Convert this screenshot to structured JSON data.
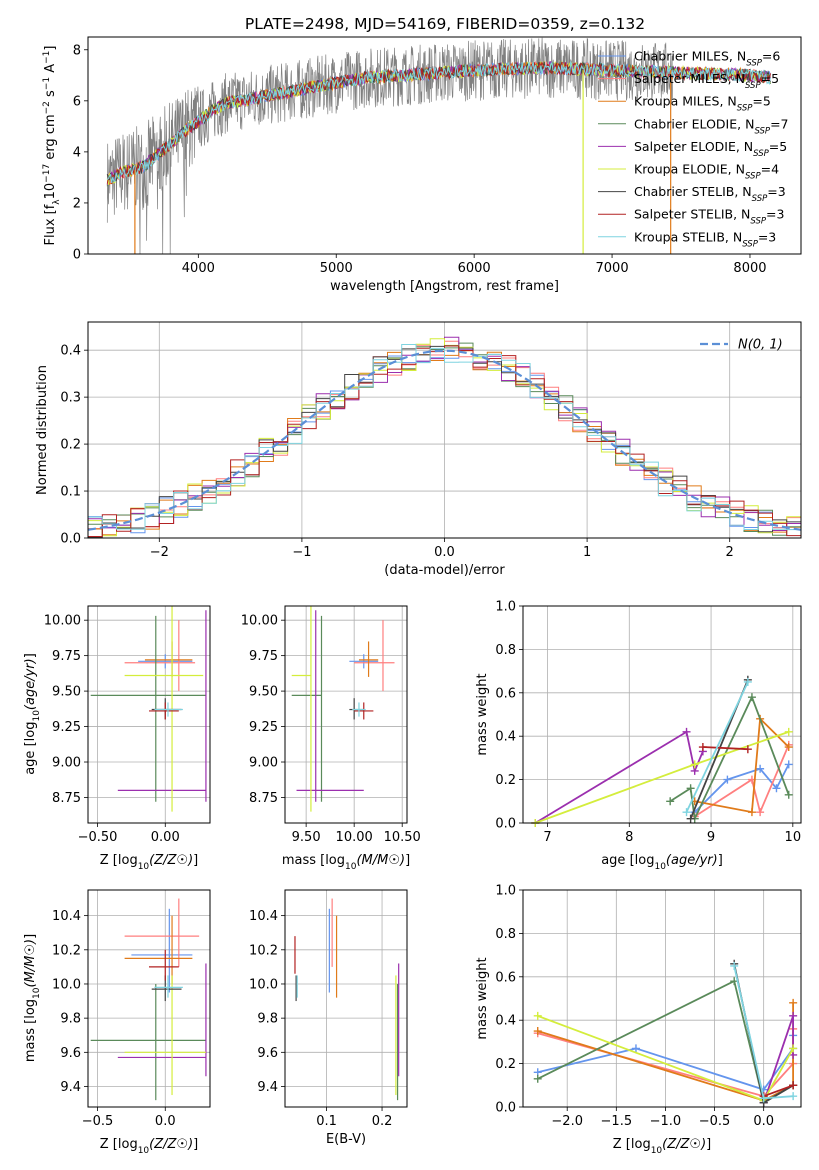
{
  "title": "PLATE=2498, MJD=54169, FIBERID=0359, z=0.132",
  "colors": {
    "chabrier_miles": "#6495ed",
    "salpeter_miles": "#ff7f7f",
    "kroupa_miles": "#e07b1a",
    "chabrier_elodie": "#5a8a5a",
    "salpeter_elodie": "#9b2fae",
    "kroupa_elodie": "#d4ed3c",
    "chabrier_stelib": "#444444",
    "salpeter_stelib": "#b22222",
    "kroupa_stelib": "#7fd4e0",
    "data": "#808080",
    "gaussian": "#5b8fd6"
  },
  "chart_data": [
    {
      "id": "spectrum",
      "type": "line",
      "xlabel": "wavelength [Angstrom, rest frame]",
      "ylabel": "Flux [f_λ10^−17 erg cm^−2 s^−1 A^−1]",
      "xlim": [
        3200,
        8370
      ],
      "ylim": [
        0,
        8.5
      ],
      "xticks": [
        4000,
        5000,
        6000,
        7000,
        8000
      ],
      "yticks": [
        0,
        2,
        4,
        6,
        8
      ],
      "grid": false,
      "legend_position": "right",
      "legend": [
        {
          "label": "Chabrier MILES, N",
          "sub": "SSP",
          "tail": "=6",
          "color": "chabrier_miles"
        },
        {
          "label": "Salpeter MILES, N",
          "sub": "SSP",
          "tail": "=5",
          "color": "salpeter_miles"
        },
        {
          "label": "Kroupa MILES, N",
          "sub": "SSP",
          "tail": "=5",
          "color": "kroupa_miles"
        },
        {
          "label": "Chabrier ELODIE, N",
          "sub": "SSP",
          "tail": "=7",
          "color": "chabrier_elodie"
        },
        {
          "label": "Salpeter ELODIE, N",
          "sub": "SSP",
          "tail": "=5",
          "color": "salpeter_elodie"
        },
        {
          "label": "Kroupa ELODIE, N",
          "sub": "SSP",
          "tail": "=4",
          "color": "kroupa_elodie"
        },
        {
          "label": "Chabrier STELIB, N",
          "sub": "SSP",
          "tail": "=3",
          "color": "chabrier_stelib"
        },
        {
          "label": "Salpeter STELIB, N",
          "sub": "SSP",
          "tail": "=3",
          "color": "salpeter_stelib"
        },
        {
          "label": "Kroupa STELIB, N",
          "sub": "SSP",
          "tail": "=3",
          "color": "kroupa_stelib"
        }
      ],
      "continuum": [
        [
          3340,
          2.9
        ],
        [
          3450,
          3.2
        ],
        [
          3600,
          3.4
        ],
        [
          3700,
          3.9
        ],
        [
          3800,
          4.3
        ],
        [
          3900,
          4.8
        ],
        [
          4000,
          5.2
        ],
        [
          4100,
          5.6
        ],
        [
          4200,
          5.9
        ],
        [
          4400,
          6.1
        ],
        [
          4600,
          6.3
        ],
        [
          4800,
          6.5
        ],
        [
          5000,
          6.7
        ],
        [
          5200,
          6.9
        ],
        [
          5500,
          7.0
        ],
        [
          6000,
          7.2
        ],
        [
          6500,
          7.3
        ],
        [
          7000,
          7.2
        ],
        [
          7500,
          7.1
        ],
        [
          8000,
          7.0
        ],
        [
          8150,
          6.9
        ]
      ],
      "data_range": [
        3340,
        7440
      ],
      "model_range": [
        3340,
        8150
      ]
    },
    {
      "id": "residuals",
      "type": "bar",
      "xlabel": "(data-model)/error",
      "ylabel": "Normed distribution",
      "xlim": [
        -2.5,
        2.5
      ],
      "ylim": [
        0,
        0.46
      ],
      "xticks": [
        -2,
        -1,
        0,
        1,
        2
      ],
      "yticks": [
        0.0,
        0.1,
        0.2,
        0.3,
        0.4
      ],
      "grid": true,
      "legend_position": "top-right",
      "legend": {
        "label": "N(0,1)"
      },
      "bin_width": 0.1
    },
    {
      "id": "age-vs-Z",
      "type": "scatter",
      "xlabel": "Z [log10(Z/Z☉)]",
      "ylabel": "age  [log10(age/yr)]",
      "xlim": [
        -0.57,
        0.33
      ],
      "ylim": [
        8.57,
        10.1
      ],
      "xticks": [
        -0.5,
        0.0
      ],
      "yticks": [
        8.75,
        9.0,
        9.25,
        9.5,
        9.75,
        10.0
      ],
      "grid": true,
      "points": [
        {
          "c": "chabrier_miles",
          "x": 0.0,
          "xe": [
            -0.2,
            0.2
          ],
          "y": 9.71,
          "ye": [
            9.66,
            9.76
          ]
        },
        {
          "c": "salpeter_miles",
          "x": 0.1,
          "xe": [
            -0.3,
            0.22
          ],
          "y": 9.7,
          "ye": [
            9.5,
            10.0
          ]
        },
        {
          "c": "kroupa_miles",
          "x": 0.05,
          "xe": [
            -0.15,
            0.2
          ],
          "y": 9.72,
          "ye": [
            9.6,
            9.85
          ]
        },
        {
          "c": "chabrier_elodie",
          "x": -0.07,
          "xe": [
            -0.55,
            0.3
          ],
          "y": 9.47,
          "ye": [
            8.72,
            10.03
          ]
        },
        {
          "c": "salpeter_elodie",
          "x": 0.3,
          "xe": [
            -0.35,
            0.3
          ],
          "y": 8.8,
          "ye": [
            8.72,
            10.07
          ]
        },
        {
          "c": "kroupa_elodie",
          "x": 0.05,
          "xe": [
            -0.3,
            0.28
          ],
          "y": 9.61,
          "ye": [
            8.65,
            10.1
          ]
        },
        {
          "c": "chabrier_stelib",
          "x": 0.0,
          "xe": [
            -0.1,
            0.12
          ],
          "y": 9.37,
          "ye": [
            9.3,
            9.45
          ]
        },
        {
          "c": "salpeter_stelib",
          "x": 0.0,
          "xe": [
            -0.12,
            0.1
          ],
          "y": 9.36,
          "ye": [
            9.3,
            9.42
          ]
        },
        {
          "c": "kroupa_stelib",
          "x": 0.02,
          "xe": [
            -0.08,
            0.13
          ],
          "y": 9.37,
          "ye": [
            9.32,
            9.42
          ]
        }
      ]
    },
    {
      "id": "age-vs-mass",
      "type": "scatter",
      "xlabel": "mass [log10(M/M☉)]",
      "ylabel": "",
      "xlim": [
        9.28,
        10.55
      ],
      "ylim": [
        8.57,
        10.1
      ],
      "xticks": [
        9.5,
        10.0,
        10.5
      ],
      "yticks": [
        8.75,
        9.0,
        9.25,
        9.5,
        9.75,
        10.0
      ],
      "grid": true,
      "points": [
        {
          "c": "chabrier_miles",
          "x": 10.1,
          "xe": [
            9.95,
            10.25
          ],
          "y": 9.71,
          "ye": [
            9.66,
            9.76
          ]
        },
        {
          "c": "salpeter_miles",
          "x": 10.3,
          "xe": [
            10.0,
            10.42
          ],
          "y": 9.7,
          "ye": [
            9.5,
            10.0
          ]
        },
        {
          "c": "kroupa_miles",
          "x": 10.15,
          "xe": [
            10.05,
            10.25
          ],
          "y": 9.72,
          "ye": [
            9.6,
            9.85
          ]
        },
        {
          "c": "chabrier_elodie",
          "x": 9.66,
          "xe": [
            9.35,
            9.66
          ],
          "y": 9.47,
          "ye": [
            8.72,
            10.03
          ]
        },
        {
          "c": "salpeter_elodie",
          "x": 9.6,
          "xe": [
            9.4,
            10.1
          ],
          "y": 8.8,
          "ye": [
            8.72,
            10.07
          ]
        },
        {
          "c": "kroupa_elodie",
          "x": 9.55,
          "xe": [
            9.35,
            9.55
          ],
          "y": 9.61,
          "ye": [
            8.65,
            10.1
          ]
        },
        {
          "c": "chabrier_stelib",
          "x": 10.0,
          "xe": [
            9.95,
            10.1
          ],
          "y": 9.37,
          "ye": [
            9.3,
            9.45
          ]
        },
        {
          "c": "salpeter_stelib",
          "x": 10.1,
          "xe": [
            10.0,
            10.2
          ],
          "y": 9.36,
          "ye": [
            9.3,
            9.42
          ]
        },
        {
          "c": "kroupa_stelib",
          "x": 10.05,
          "xe": [
            9.98,
            10.12
          ],
          "y": 9.37,
          "ye": [
            9.32,
            9.42
          ]
        }
      ]
    },
    {
      "id": "weight-vs-age",
      "type": "line",
      "xlabel": "age  [log10(age/yr)]",
      "ylabel": "mass weight",
      "xlim": [
        6.7,
        10.1
      ],
      "ylim": [
        0,
        1.0
      ],
      "xticks": [
        7,
        8,
        9,
        10
      ],
      "yticks": [
        0.0,
        0.2,
        0.4,
        0.6,
        0.8,
        1.0
      ],
      "grid": true,
      "series": [
        {
          "c": "chabrier_miles",
          "x": [
            8.8,
            9.2,
            9.6,
            9.8,
            9.95
          ],
          "y": [
            0.05,
            0.2,
            0.25,
            0.16,
            0.27
          ]
        },
        {
          "c": "salpeter_miles",
          "x": [
            8.8,
            9.5,
            9.6,
            9.95
          ],
          "y": [
            0.03,
            0.2,
            0.05,
            0.36
          ]
        },
        {
          "c": "kroupa_miles",
          "x": [
            8.8,
            9.5,
            9.6,
            9.95
          ],
          "y": [
            0.1,
            0.05,
            0.48,
            0.35
          ]
        },
        {
          "c": "chabrier_elodie",
          "x": [
            8.5,
            8.75,
            8.8,
            9.5,
            9.95
          ],
          "y": [
            0.1,
            0.16,
            0.02,
            0.58,
            0.13
          ]
        },
        {
          "c": "salpeter_elodie",
          "x": [
            6.85,
            8.7,
            8.8,
            8.9
          ],
          "y": [
            0.0,
            0.42,
            0.24,
            0.33
          ]
        },
        {
          "c": "kroupa_elodie",
          "x": [
            6.85,
            8.8,
            9.95
          ],
          "y": [
            0.0,
            0.27,
            0.42
          ]
        },
        {
          "c": "chabrier_stelib",
          "x": [
            8.75,
            9.45
          ],
          "y": [
            0.02,
            0.66
          ]
        },
        {
          "c": "salpeter_stelib",
          "x": [
            8.9,
            9.45
          ],
          "y": [
            0.35,
            0.34
          ]
        },
        {
          "c": "kroupa_stelib",
          "x": [
            8.7,
            9.45
          ],
          "y": [
            0.05,
            0.65
          ]
        }
      ]
    },
    {
      "id": "mass-vs-Z",
      "type": "scatter",
      "xlabel": "Z [log10(Z/Z☉)]",
      "ylabel": "mass [log10(M/M☉)]",
      "xlim": [
        -0.57,
        0.33
      ],
      "ylim": [
        9.28,
        10.55
      ],
      "xticks": [
        -0.5,
        0.0
      ],
      "yticks": [
        9.4,
        9.6,
        9.8,
        10.0,
        10.2,
        10.4
      ],
      "grid": true,
      "points": [
        {
          "c": "chabrier_miles",
          "x": 0.03,
          "xe": [
            -0.25,
            0.2
          ],
          "y": 10.17,
          "ye": [
            9.95,
            10.44
          ]
        },
        {
          "c": "salpeter_miles",
          "x": 0.1,
          "xe": [
            -0.3,
            0.25
          ],
          "y": 10.28,
          "ye": [
            10.1,
            10.5
          ]
        },
        {
          "c": "kroupa_miles",
          "x": 0.05,
          "xe": [
            -0.3,
            0.2
          ],
          "y": 10.15,
          "ye": [
            10.0,
            10.4
          ]
        },
        {
          "c": "chabrier_elodie",
          "x": -0.07,
          "xe": [
            -0.55,
            0.3
          ],
          "y": 9.67,
          "ye": [
            9.32,
            10.0
          ]
        },
        {
          "c": "salpeter_elodie",
          "x": 0.3,
          "xe": [
            -0.35,
            0.3
          ],
          "y": 9.57,
          "ye": [
            9.46,
            10.12
          ]
        },
        {
          "c": "kroupa_elodie",
          "x": 0.05,
          "xe": [
            -0.3,
            0.3
          ],
          "y": 9.6,
          "ye": [
            9.35,
            10.05
          ]
        },
        {
          "c": "chabrier_stelib",
          "x": 0.0,
          "xe": [
            -0.1,
            0.12
          ],
          "y": 9.97,
          "ye": [
            9.9,
            10.05
          ]
        },
        {
          "c": "salpeter_stelib",
          "x": 0.0,
          "xe": [
            -0.12,
            0.1
          ],
          "y": 10.1,
          "ye": [
            10.02,
            10.2
          ]
        },
        {
          "c": "kroupa_stelib",
          "x": 0.02,
          "xe": [
            -0.08,
            0.13
          ],
          "y": 9.98,
          "ye": [
            9.92,
            10.05
          ]
        }
      ]
    },
    {
      "id": "mass-vs-EBV",
      "type": "scatter",
      "xlabel": "E(B-V)",
      "ylabel": "",
      "xlim": [
        0.025,
        0.245
      ],
      "ylim": [
        9.28,
        10.55
      ],
      "xticks": [
        0.1,
        0.2
      ],
      "yticks": [
        9.4,
        9.6,
        9.8,
        10.0,
        10.2,
        10.4
      ],
      "grid": true,
      "points": [
        {
          "c": "chabrier_miles",
          "x": 0.105,
          "y": 10.17,
          "ye": [
            9.95,
            10.44
          ]
        },
        {
          "c": "salpeter_miles",
          "x": 0.11,
          "y": 10.28,
          "ye": [
            10.1,
            10.5
          ]
        },
        {
          "c": "kroupa_miles",
          "x": 0.118,
          "y": 10.15,
          "ye": [
            9.92,
            10.4
          ]
        },
        {
          "c": "chabrier_elodie",
          "x": 0.228,
          "y": 9.67,
          "ye": [
            9.32,
            10.0
          ]
        },
        {
          "c": "salpeter_elodie",
          "x": 0.23,
          "y": 9.57,
          "ye": [
            9.46,
            10.12
          ]
        },
        {
          "c": "kroupa_elodie",
          "x": 0.225,
          "y": 9.6,
          "ye": [
            9.35,
            10.05
          ]
        },
        {
          "c": "chabrier_stelib",
          "x": 0.045,
          "y": 9.97,
          "ye": [
            9.9,
            10.05
          ]
        },
        {
          "c": "salpeter_stelib",
          "x": 0.043,
          "y": 10.1,
          "ye": [
            10.06,
            10.28
          ]
        },
        {
          "c": "kroupa_stelib",
          "x": 0.047,
          "y": 9.98,
          "ye": [
            9.92,
            10.05
          ]
        }
      ]
    },
    {
      "id": "weight-vs-Z",
      "type": "line",
      "xlabel": "Z [log10(Z/Z☉)]",
      "ylabel": "mass weight",
      "xlim": [
        -2.45,
        0.38
      ],
      "ylim": [
        0,
        1.0
      ],
      "xticks": [
        -2.0,
        -1.5,
        -1.0,
        -0.5,
        0.0
      ],
      "yticks": [
        0.0,
        0.2,
        0.4,
        0.6,
        0.8,
        1.0
      ],
      "grid": true,
      "series": [
        {
          "c": "chabrier_miles",
          "x": [
            -2.3,
            -1.3,
            0.0,
            0.3,
            0.3
          ],
          "y": [
            0.16,
            0.27,
            0.08,
            0.27,
            0.33
          ]
        },
        {
          "c": "salpeter_miles",
          "x": [
            -2.3,
            0.0,
            0.3,
            0.3
          ],
          "y": [
            0.34,
            0.05,
            0.2,
            0.36
          ]
        },
        {
          "c": "kroupa_miles",
          "x": [
            -2.3,
            0.0,
            0.3,
            0.3
          ],
          "y": [
            0.35,
            0.03,
            0.1,
            0.48
          ]
        },
        {
          "c": "chabrier_elodie",
          "x": [
            -2.3,
            -0.3,
            0.0,
            0.3
          ],
          "y": [
            0.13,
            0.58,
            0.02,
            0.1
          ]
        },
        {
          "c": "salpeter_elodie",
          "x": [
            0.0,
            0.3,
            0.3
          ],
          "y": [
            0.02,
            0.42,
            0.24
          ]
        },
        {
          "c": "kroupa_elodie",
          "x": [
            -2.3,
            0.0,
            0.3
          ],
          "y": [
            0.42,
            0.03,
            0.27
          ]
        },
        {
          "c": "chabrier_stelib",
          "x": [
            -0.3,
            0.0,
            0.3
          ],
          "y": [
            0.66,
            0.02,
            0.1
          ]
        },
        {
          "c": "salpeter_stelib",
          "x": [
            0.0,
            0.3
          ],
          "y": [
            0.05,
            0.1
          ]
        },
        {
          "c": "kroupa_stelib",
          "x": [
            -0.3,
            0.0,
            0.3
          ],
          "y": [
            0.65,
            0.04,
            0.05
          ]
        }
      ]
    }
  ]
}
